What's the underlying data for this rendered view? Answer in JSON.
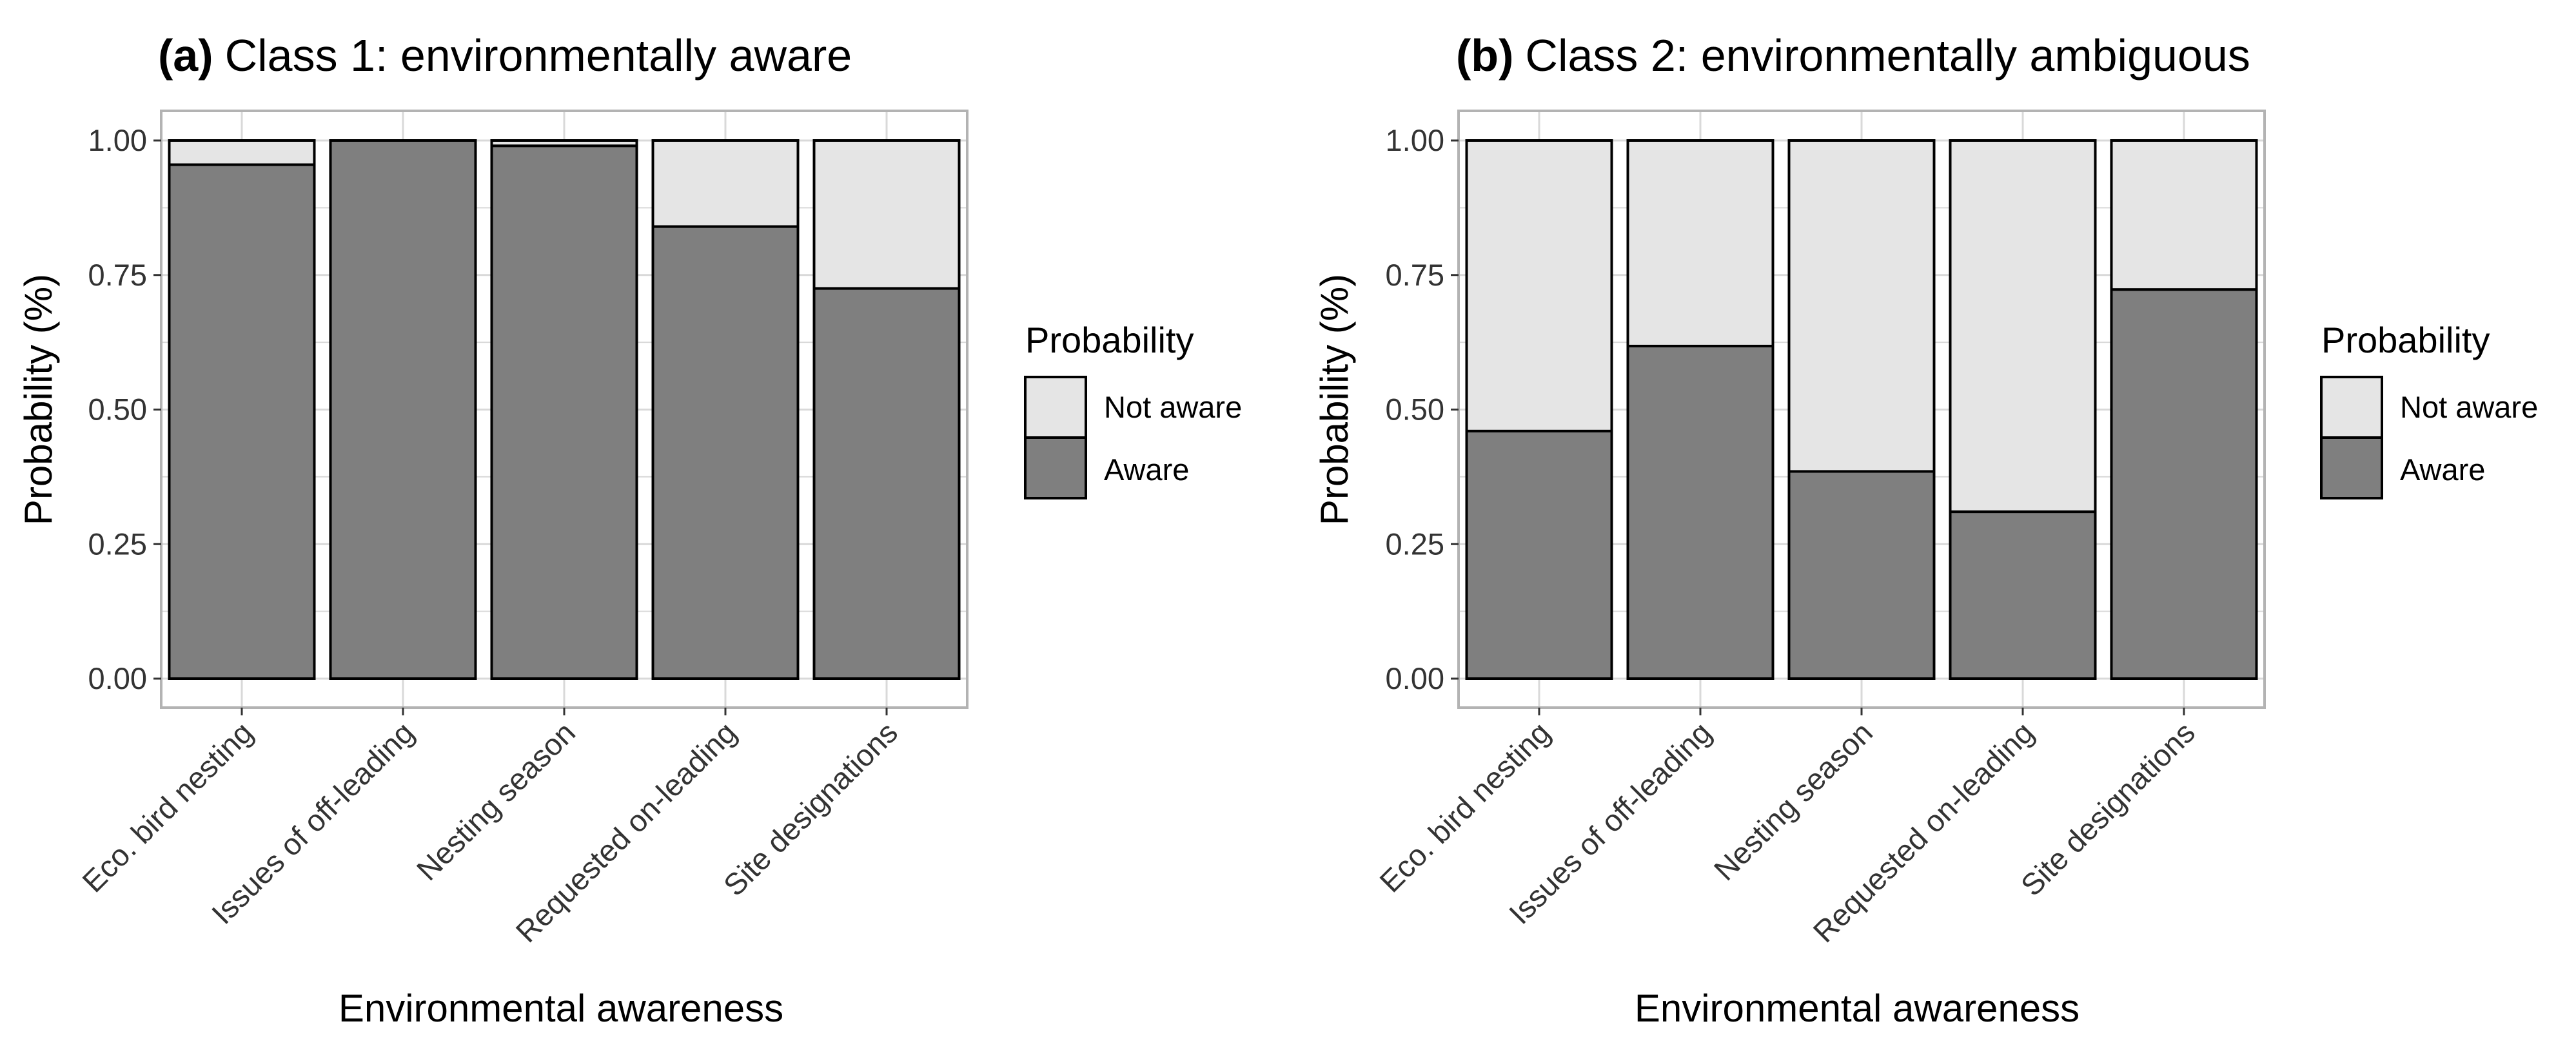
{
  "chart_data": [
    {
      "type": "bar",
      "stacked": true,
      "title_tag": "(a)",
      "title_text": "Class 1: environmentally aware",
      "xlabel": "Environmental awareness",
      "ylabel": "Probability (%)",
      "ylim": [
        0,
        1
      ],
      "y_ticks": [
        "0.00",
        "0.25",
        "0.50",
        "0.75",
        "1.00"
      ],
      "grid": true,
      "categories": [
        "Eco. bird nesting",
        "Issues of off-leading",
        "Nesting season",
        "Requested on-leading",
        "Site designations"
      ],
      "series": [
        {
          "name": "Aware",
          "values": [
            0.955,
            1.0,
            0.99,
            0.84,
            0.725
          ]
        },
        {
          "name": "Not aware",
          "values": [
            0.045,
            0.0,
            0.01,
            0.16,
            0.275
          ]
        }
      ],
      "legend": {
        "title": "Probability",
        "entries": [
          "Not aware",
          "Aware"
        ],
        "position": "right"
      }
    },
    {
      "type": "bar",
      "stacked": true,
      "title_tag": "(b)",
      "title_text": "Class 2: environmentally ambiguous",
      "xlabel": "Environmental awareness",
      "ylabel": "Probability (%)",
      "ylim": [
        0,
        1
      ],
      "y_ticks": [
        "0.00",
        "0.25",
        "0.50",
        "0.75",
        "1.00"
      ],
      "grid": true,
      "categories": [
        "Eco. bird nesting",
        "Issues of off-leading",
        "Nesting season",
        "Requested on-leading",
        "Site designations"
      ],
      "series": [
        {
          "name": "Aware",
          "values": [
            0.46,
            0.618,
            0.385,
            0.31,
            0.723
          ]
        },
        {
          "name": "Not aware",
          "values": [
            0.54,
            0.382,
            0.615,
            0.69,
            0.277
          ]
        }
      ],
      "legend": {
        "title": "Probability",
        "entries": [
          "Not aware",
          "Aware"
        ],
        "position": "right"
      }
    }
  ],
  "colors": {
    "aware": "#7f7f7f",
    "not_aware": "#e5e5e5",
    "bar_outline": "#000000",
    "grid": "#d9d9d9",
    "panel_border": "#b3b3b3",
    "axis_ticks": "#333333"
  }
}
